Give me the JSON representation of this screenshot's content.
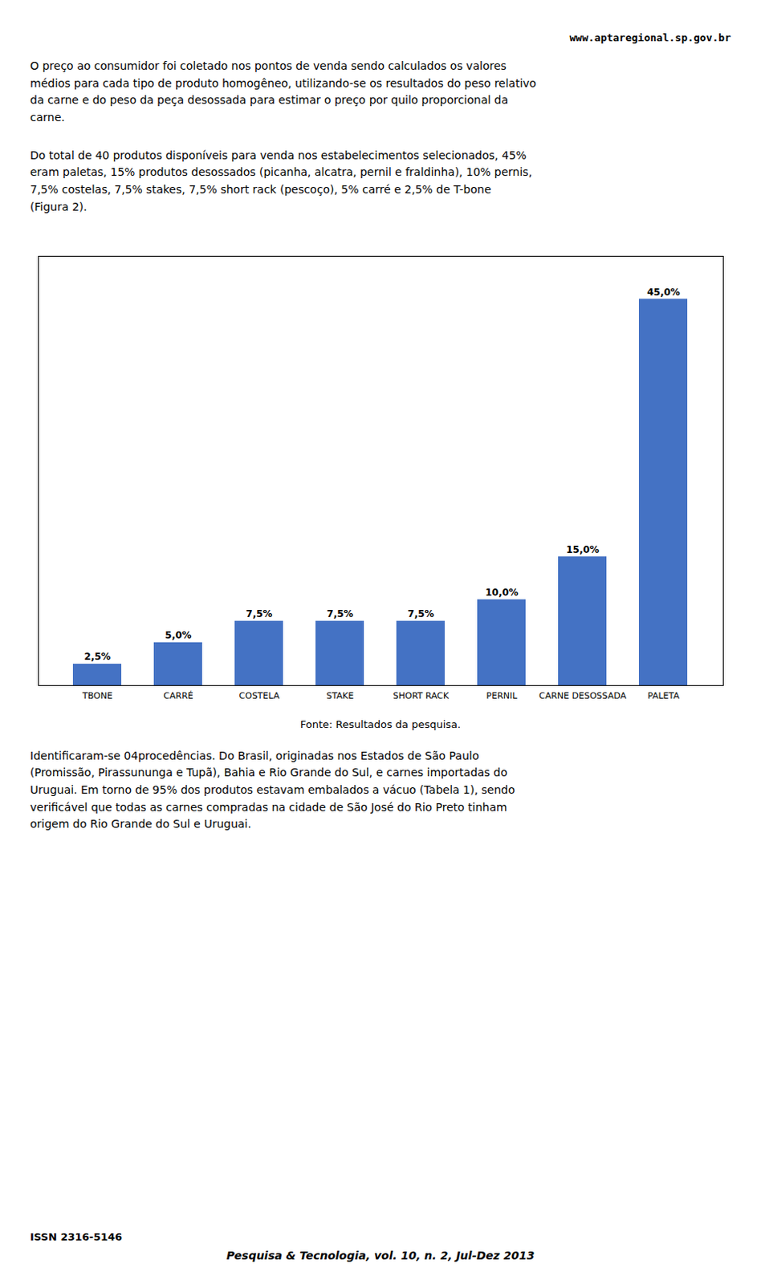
{
  "chart_data": {
    "type": "bar",
    "categories": [
      "TBONE",
      "CARRÉ",
      "COSTELA",
      "STAKE",
      "SHORT RACK",
      "PERNIL",
      "CARNE DESOSSADA",
      "PALETA"
    ],
    "values": [
      2.5,
      5.0,
      7.5,
      7.5,
      7.5,
      10.0,
      15.0,
      45.0
    ],
    "value_labels": [
      "2,5%",
      "5,0%",
      "7,5%",
      "7,5%",
      "7,5%",
      "10,0%",
      "15,0%",
      "45,0%"
    ],
    "color": "#4472C4",
    "ylim": [
      0,
      50
    ],
    "grid": false,
    "data_labels": true,
    "tick_labels": "x",
    "annotations": [
      "Fonte: Resultados da pesquisa."
    ]
  },
  "page": {
    "header": "www.aptaregional.sp.gov.br",
    "paragraphs_above": [
      [
        "O preço ao consumidor foi coletado nos pontos de venda sendo calculados os valores",
        "médios para cada tipo de produto homogêneo, utilizando-se os resultados do peso relativo",
        "da carne e do peso da peça desossada para estimar o preço por quilo proporcional da",
        "carne."
      ],
      [
        "Do total de 40 produtos disponíveis para venda nos estabelecimentos selecionados, 45%",
        "eram paletas, 15% produtos desossados (picanha, alcatra, pernil e fraldinha), 10% pernis,",
        "7,5% costelas, 7,5% stakes, 7,5% short rack (pescoço), 5% carré e 2,5% de T-bone",
        "(Figura 2)."
      ]
    ],
    "paragraphs_below": [
      [
        "Identificaram-se 04procedências. Do Brasil, originadas nos Estados de São Paulo",
        "(Promissão, Pirassununga e Tupã), Bahia e Rio Grande do Sul, e carnes importadas do",
        "Uruguai. Em torno de 95% dos produtos estavam embalados a vácuo (Tabela 1), sendo",
        "verificável que todas as carnes compradas na cidade de São José do Rio Preto tinham",
        "origem do Rio Grande do Sul e Uruguai."
      ]
    ],
    "footer": [
      "ISSN 2316-5146",
      "Pesquisa & Tecnologia, vol. 10, n. 2, Jul-Dez 2013"
    ]
  }
}
